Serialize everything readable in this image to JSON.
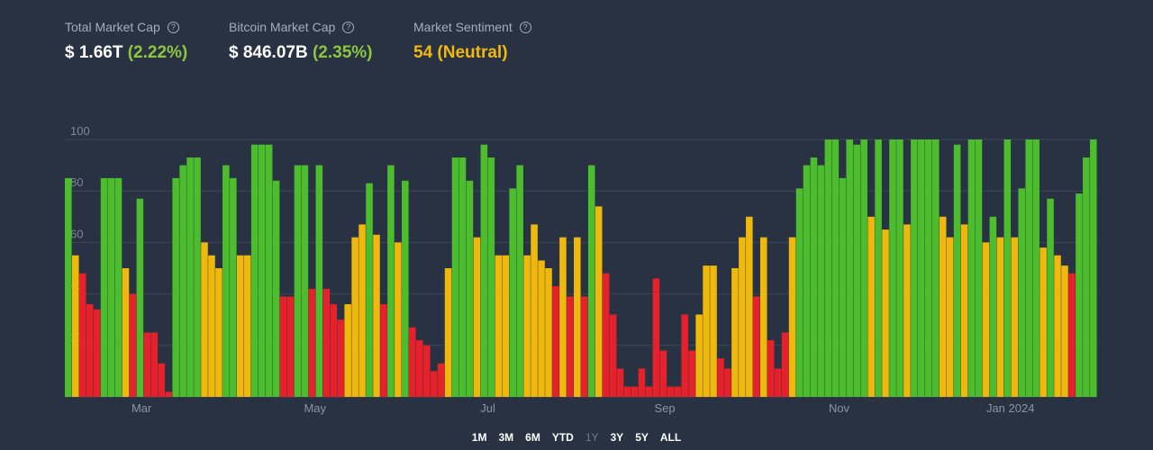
{
  "stats": [
    {
      "label": "Total Market Cap",
      "value": "$ 1.66T",
      "change": "(2.22%)"
    },
    {
      "label": "Bitcoin Market Cap",
      "value": "$ 846.07B",
      "change": "(2.35%)"
    },
    {
      "label": "Market Sentiment",
      "value": "54 (Neutral)"
    }
  ],
  "chart_data": {
    "type": "bar",
    "values": [
      85,
      55,
      48,
      36,
      34,
      85,
      85,
      85,
      50,
      40,
      77,
      25,
      25,
      13,
      2,
      85,
      90,
      93,
      93,
      60,
      55,
      50,
      90,
      85,
      55,
      55,
      98,
      98,
      98,
      84,
      39,
      39,
      90,
      90,
      42,
      90,
      42,
      36,
      30,
      36,
      62,
      67,
      83,
      63,
      36,
      90,
      60,
      84,
      27,
      22,
      20,
      10,
      13,
      50,
      93,
      93,
      84,
      62,
      98,
      93,
      55,
      55,
      81,
      90,
      55,
      67,
      53,
      50,
      43,
      62,
      39,
      62,
      39,
      90,
      74,
      48,
      32,
      11,
      4,
      4,
      11,
      4,
      46,
      18,
      4,
      4,
      32,
      18,
      32,
      51,
      51,
      15,
      11,
      50,
      62,
      70,
      39,
      62,
      22,
      11,
      25,
      62,
      81,
      90,
      93,
      90,
      100,
      100,
      85,
      100,
      98,
      100,
      70,
      100,
      65,
      100,
      100,
      67,
      100,
      100,
      100,
      100,
      70,
      62,
      98,
      67,
      100,
      100,
      60,
      70,
      62,
      100,
      62,
      81,
      100,
      100,
      58,
      77,
      55,
      51,
      48,
      79,
      93,
      100
    ],
    "color_keys": [
      "g",
      "y",
      "r",
      "r",
      "r",
      "g",
      "g",
      "g",
      "y",
      "r",
      "g",
      "r",
      "r",
      "r",
      "r",
      "g",
      "g",
      "g",
      "g",
      "y",
      "y",
      "y",
      "g",
      "g",
      "y",
      "y",
      "g",
      "g",
      "g",
      "g",
      "r",
      "r",
      "g",
      "g",
      "r",
      "g",
      "r",
      "r",
      "r",
      "y",
      "y",
      "y",
      "g",
      "y",
      "r",
      "g",
      "y",
      "g",
      "r",
      "r",
      "r",
      "r",
      "r",
      "y",
      "g",
      "g",
      "g",
      "y",
      "g",
      "g",
      "y",
      "y",
      "g",
      "g",
      "y",
      "y",
      "y",
      "y",
      "r",
      "y",
      "r",
      "y",
      "r",
      "g",
      "y",
      "r",
      "r",
      "r",
      "r",
      "r",
      "r",
      "r",
      "r",
      "r",
      "r",
      "r",
      "r",
      "r",
      "y",
      "y",
      "y",
      "r",
      "r",
      "y",
      "y",
      "y",
      "r",
      "y",
      "r",
      "r",
      "r",
      "y",
      "g",
      "g",
      "g",
      "g",
      "g",
      "g",
      "g",
      "g",
      "g",
      "g",
      "y",
      "g",
      "y",
      "g",
      "g",
      "y",
      "g",
      "g",
      "g",
      "g",
      "y",
      "y",
      "g",
      "y",
      "g",
      "g",
      "y",
      "g",
      "y",
      "g",
      "y",
      "g",
      "g",
      "g",
      "y",
      "g",
      "y",
      "y",
      "r",
      "g",
      "g",
      "g"
    ],
    "palette": {
      "g": "#4cbd2c",
      "y": "#efb80d",
      "r": "#e5212b"
    },
    "xlim": [
      0,
      144
    ],
    "xticks": [
      {
        "value": 10.7,
        "label": "Mar"
      },
      {
        "value": 34.9,
        "label": "May"
      },
      {
        "value": 59,
        "label": "Jul"
      },
      {
        "value": 83.7,
        "label": "Sep"
      },
      {
        "value": 108,
        "label": "Nov"
      },
      {
        "value": 131.9,
        "label": "Jan 2024"
      }
    ],
    "ylim": [
      0,
      100
    ],
    "yticks": [
      20,
      40,
      60,
      80,
      100
    ],
    "grid": true
  },
  "ranges": [
    "1M",
    "3M",
    "6M",
    "YTD",
    "1Y",
    "3Y",
    "5Y",
    "ALL"
  ]
}
